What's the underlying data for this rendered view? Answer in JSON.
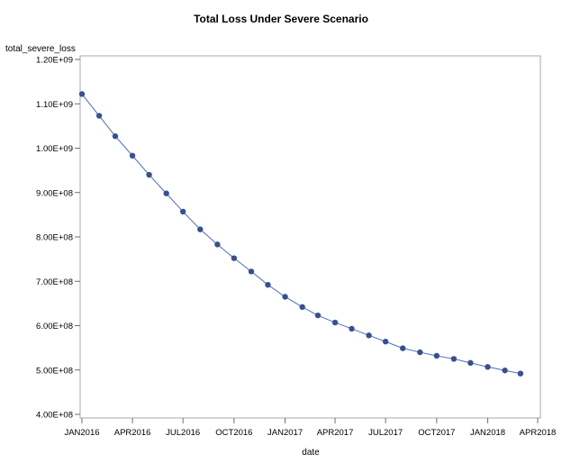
{
  "chart_data": {
    "type": "line",
    "title": "Total Loss Under Severe Scenario",
    "xlabel": "date",
    "ylabel": "total_severe_loss",
    "ylim": [
      400000000,
      1200000000
    ],
    "xlim": [
      "2016-01-01",
      "2018-04-01"
    ],
    "x_ticks": [
      "JAN2016",
      "APR2016",
      "JUL2016",
      "OCT2016",
      "JAN2017",
      "APR2017",
      "JUL2017",
      "OCT2017",
      "JAN2018",
      "APR2018"
    ],
    "y_ticks": [
      "4.00E+08",
      "5.00E+08",
      "6.00E+08",
      "7.00E+08",
      "8.00E+08",
      "9.00E+08",
      "1.00E+09",
      "1.10E+09",
      "1.20E+09"
    ],
    "grid": false,
    "legend": "none",
    "colors": {
      "line": "#4a6fb5",
      "marker": "#3a4f8f",
      "frame": "#a8a8a8",
      "tick": "#6e6e6e"
    },
    "series": [
      {
        "x": [
          "2016-01-01",
          "2016-02-01",
          "2016-03-01",
          "2016-04-01",
          "2016-05-01",
          "2016-06-01",
          "2016-07-01",
          "2016-08-01",
          "2016-09-01",
          "2016-10-01",
          "2016-11-01",
          "2016-12-01",
          "2017-01-01",
          "2017-02-01",
          "2017-03-01",
          "2017-04-01",
          "2017-05-01",
          "2017-06-01",
          "2017-07-01",
          "2017-08-01",
          "2017-09-01",
          "2017-10-01",
          "2017-11-01",
          "2017-12-01",
          "2018-01-01",
          "2018-02-01",
          "2018-03-01"
        ],
        "values": [
          1122000000,
          1073000000,
          1027000000,
          983000000,
          940000000,
          898000000,
          857000000,
          817000000,
          783000000,
          752000000,
          722000000,
          692000000,
          665000000,
          642000000,
          623000000,
          607000000,
          593000000,
          578000000,
          564000000,
          549000000,
          540000000,
          532000000,
          525000000,
          516000000,
          507000000,
          499000000,
          492000000
        ]
      }
    ]
  }
}
